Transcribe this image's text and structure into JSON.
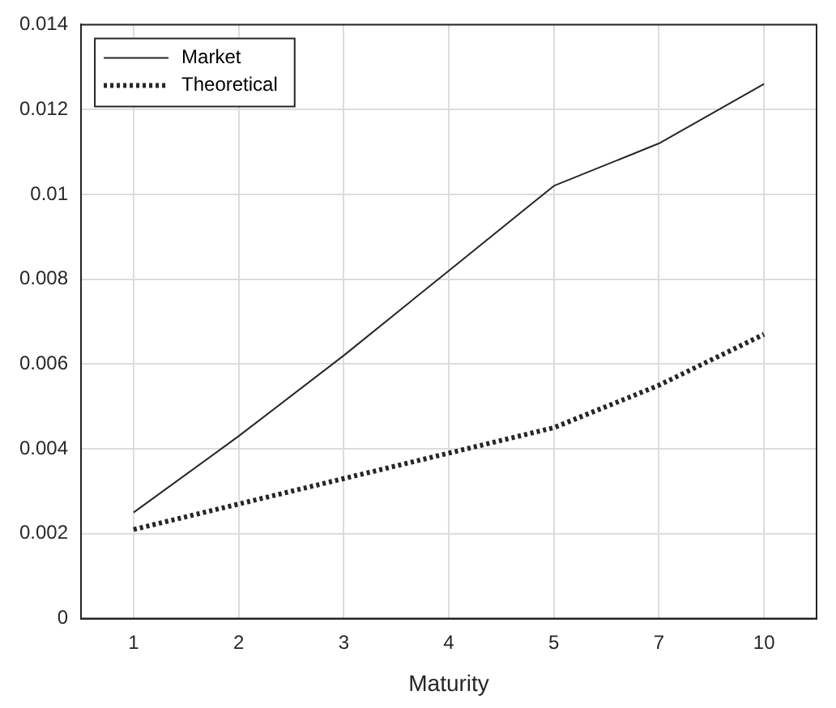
{
  "chart_data": {
    "type": "line",
    "xlabel": "Maturity",
    "categories": [
      "1",
      "2",
      "3",
      "4",
      "5",
      "7",
      "10"
    ],
    "series": [
      {
        "name": "Market",
        "color": "#262626",
        "line_style": "solid",
        "values": [
          0.0025,
          0.0043,
          0.0062,
          0.0082,
          0.0102,
          0.0112,
          0.0126
        ]
      },
      {
        "name": "Theoretical",
        "color": "#262626",
        "line_style": "dotted",
        "values": [
          0.0021,
          0.0027,
          0.0033,
          0.0039,
          0.0045,
          0.0055,
          0.0067
        ]
      }
    ],
    "ylim": [
      0,
      0.014
    ],
    "yticks": [
      0,
      0.002,
      0.004,
      0.006,
      0.008,
      0.01,
      0.012,
      0.014
    ],
    "grid": true,
    "legend": "top left",
    "marker": "none"
  }
}
